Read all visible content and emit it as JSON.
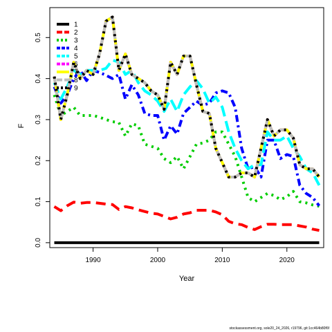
{
  "chart_data": {
    "type": "line",
    "xlabel": "Year",
    "ylabel": "F",
    "xlim": [
      1983.3,
      2025.7
    ],
    "ylim": [
      -0.012,
      0.573
    ],
    "x_ticks": [
      1990,
      2000,
      2010,
      2020
    ],
    "y_ticks": [
      0.0,
      0.1,
      0.2,
      0.3,
      0.4,
      0.5
    ],
    "y_tick_labels": [
      "0.0",
      "0.1",
      "0.2",
      "0.3",
      "0.4",
      "0.5"
    ],
    "grid": false,
    "legend_position": "top-left",
    "x": [
      1984,
      1985,
      1986,
      1987,
      1988,
      1989,
      1990,
      1991,
      1992,
      1993,
      1994,
      1995,
      1996,
      1997,
      1998,
      1999,
      2000,
      2001,
      2002,
      2003,
      2004,
      2005,
      2006,
      2007,
      2008,
      2009,
      2010,
      2011,
      2012,
      2013,
      2014,
      2015,
      2016,
      2017,
      2018,
      2019,
      2020,
      2021,
      2022,
      2023,
      2024,
      2025
    ],
    "series": [
      {
        "name": "1",
        "color": "#000000",
        "dash": "solid",
        "values": [
          0,
          0,
          0,
          0,
          0,
          0,
          0,
          0,
          0,
          0,
          0,
          0,
          0,
          0,
          0,
          0,
          0,
          0,
          0,
          0,
          0,
          0,
          0,
          0,
          0,
          0,
          0,
          0,
          0,
          0,
          0,
          0,
          0,
          0,
          0,
          0,
          0,
          0,
          0,
          0,
          0,
          0
        ]
      },
      {
        "name": "2",
        "color": "#ff0000",
        "dash": "long",
        "values": [
          0.088,
          0.078,
          0.09,
          0.099,
          0.096,
          0.098,
          0.098,
          0.096,
          0.094,
          0.093,
          0.081,
          0.088,
          0.085,
          0.08,
          0.076,
          0.072,
          0.07,
          0.064,
          0.058,
          0.062,
          0.07,
          0.073,
          0.079,
          0.079,
          0.079,
          0.075,
          0.068,
          0.052,
          0.046,
          0.044,
          0.037,
          0.032,
          0.039,
          0.045,
          0.045,
          0.044,
          0.044,
          0.044,
          0.041,
          0.038,
          0.033,
          0.03
        ]
      },
      {
        "name": "3",
        "color": "#00cd00",
        "dash": "dotted",
        "values": [
          0.36,
          0.31,
          0.32,
          0.33,
          0.31,
          0.31,
          0.31,
          0.306,
          0.3,
          0.295,
          0.293,
          0.26,
          0.29,
          0.285,
          0.24,
          0.235,
          0.23,
          0.205,
          0.195,
          0.21,
          0.18,
          0.21,
          0.24,
          0.243,
          0.25,
          0.27,
          0.27,
          0.24,
          0.21,
          0.16,
          0.11,
          0.1,
          0.11,
          0.12,
          0.115,
          0.105,
          0.112,
          0.125,
          0.1,
          0.097,
          0.092,
          0.089
        ]
      },
      {
        "name": "4",
        "color": "#0000ff",
        "dash": "dashdot",
        "values": [
          0.38,
          0.34,
          0.36,
          0.4,
          0.42,
          0.395,
          0.42,
          0.415,
          0.408,
          0.4,
          0.41,
          0.35,
          0.385,
          0.36,
          0.315,
          0.31,
          0.31,
          0.25,
          0.285,
          0.265,
          0.315,
          0.33,
          0.345,
          0.335,
          0.34,
          0.365,
          0.37,
          0.365,
          0.33,
          0.23,
          0.18,
          0.185,
          0.16,
          0.25,
          0.25,
          0.205,
          0.215,
          0.21,
          0.14,
          0.12,
          0.11,
          0.09
        ]
      },
      {
        "name": "5",
        "color": "#00ffff",
        "dash": "longdash",
        "values": [
          0.39,
          0.35,
          0.38,
          0.42,
          0.41,
          0.42,
          0.42,
          0.42,
          0.425,
          0.445,
          0.44,
          0.41,
          0.42,
          0.39,
          0.37,
          0.36,
          0.345,
          0.32,
          0.35,
          0.32,
          0.36,
          0.38,
          0.395,
          0.375,
          0.34,
          0.355,
          0.33,
          0.27,
          0.23,
          0.2,
          0.18,
          0.19,
          0.19,
          0.27,
          0.25,
          0.25,
          0.26,
          0.23,
          0.21,
          0.18,
          0.17,
          0.14
        ]
      },
      {
        "name": "6",
        "color": "#ff00ff",
        "dash": "twodash",
        "values": [
          0.405,
          0.3,
          0.36,
          0.44,
          0.4,
          0.42,
          0.41,
          0.46,
          0.54,
          0.55,
          0.42,
          0.46,
          0.41,
          0.4,
          0.39,
          0.37,
          0.36,
          0.325,
          0.44,
          0.41,
          0.455,
          0.455,
          0.385,
          0.32,
          0.315,
          0.23,
          0.195,
          0.16,
          0.16,
          0.17,
          0.17,
          0.16,
          0.23,
          0.3,
          0.26,
          0.275,
          0.275,
          0.255,
          0.19,
          0.18,
          0.18,
          0.16
        ]
      },
      {
        "name": "7",
        "color": "#ffff00",
        "dash": "solid",
        "values": [
          0.405,
          0.3,
          0.36,
          0.44,
          0.4,
          0.42,
          0.41,
          0.46,
          0.54,
          0.55,
          0.42,
          0.46,
          0.41,
          0.4,
          0.39,
          0.37,
          0.36,
          0.325,
          0.44,
          0.41,
          0.455,
          0.455,
          0.385,
          0.32,
          0.315,
          0.23,
          0.195,
          0.16,
          0.16,
          0.17,
          0.17,
          0.16,
          0.23,
          0.3,
          0.26,
          0.275,
          0.275,
          0.255,
          0.19,
          0.18,
          0.18,
          0.16
        ]
      },
      {
        "name": "8",
        "color": "#bebebe",
        "dash": "long",
        "values": [
          0.405,
          0.3,
          0.36,
          0.44,
          0.4,
          0.42,
          0.41,
          0.46,
          0.54,
          0.55,
          0.42,
          0.46,
          0.41,
          0.4,
          0.39,
          0.37,
          0.36,
          0.325,
          0.44,
          0.41,
          0.455,
          0.455,
          0.385,
          0.32,
          0.315,
          0.23,
          0.195,
          0.16,
          0.16,
          0.17,
          0.17,
          0.16,
          0.23,
          0.3,
          0.26,
          0.275,
          0.275,
          0.255,
          0.19,
          0.18,
          0.18,
          0.16
        ]
      },
      {
        "name": "9",
        "color": "#000000",
        "dash": "dotted",
        "values": [
          0.405,
          0.3,
          0.36,
          0.44,
          0.4,
          0.42,
          0.41,
          0.46,
          0.54,
          0.55,
          0.42,
          0.46,
          0.41,
          0.4,
          0.39,
          0.37,
          0.36,
          0.325,
          0.44,
          0.41,
          0.455,
          0.455,
          0.385,
          0.32,
          0.315,
          0.23,
          0.195,
          0.16,
          0.16,
          0.17,
          0.17,
          0.16,
          0.23,
          0.3,
          0.26,
          0.275,
          0.275,
          0.255,
          0.19,
          0.18,
          0.18,
          0.16
        ]
      }
    ]
  },
  "footer_text": "stockassessment.org, sole20_24_2026, r19796, git:1cc464b80f6f"
}
